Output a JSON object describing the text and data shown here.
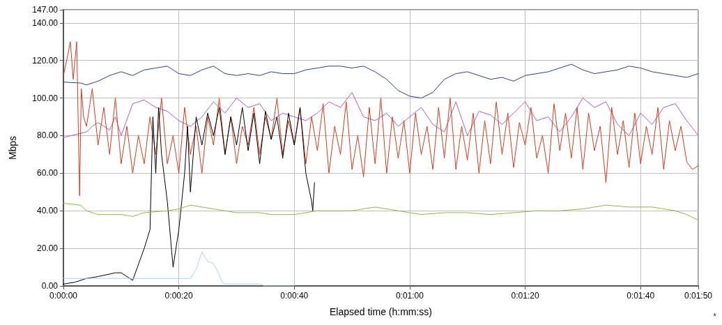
{
  "chart_data": {
    "type": "line",
    "xlabel": "Elapsed time (h:mm:ss)",
    "ylabel": "Mbps",
    "grid": true,
    "marker": "none",
    "line_style": "solid",
    "annotations": [
      "*"
    ],
    "xlim": [
      0,
      110
    ],
    "xticks": [
      {
        "value": 0,
        "label": "0:00:00"
      },
      {
        "value": 20,
        "label": "0:00:20"
      },
      {
        "value": 40,
        "label": "0:00:40"
      },
      {
        "value": 60,
        "label": "0:01:00"
      },
      {
        "value": 80,
        "label": "0:01:20"
      },
      {
        "value": 100,
        "label": "0:01:40"
      },
      {
        "value": 110,
        "label": "0:01:50"
      }
    ],
    "ylim": [
      0,
      147
    ],
    "yticks": [
      {
        "value": 0,
        "label": "0.00"
      },
      {
        "value": 20,
        "label": "20.00"
      },
      {
        "value": 40,
        "label": "40.00"
      },
      {
        "value": 60,
        "label": "60.00"
      },
      {
        "value": 80,
        "label": "80.00"
      },
      {
        "value": 100,
        "label": "100.00"
      },
      {
        "value": 120,
        "label": "120.00"
      },
      {
        "value": 140,
        "label": "140.00"
      },
      {
        "value": 147,
        "label": "147.00"
      }
    ],
    "series": [
      {
        "color": "#2b3f95",
        "x": [
          0,
          3,
          4,
          6,
          8,
          10,
          12,
          14,
          16,
          18,
          20,
          22,
          24,
          26,
          28,
          30,
          32,
          34,
          36,
          38,
          40,
          42,
          44,
          46,
          48,
          50,
          52,
          54,
          56,
          58,
          60,
          62,
          64,
          66,
          68,
          70,
          72,
          74,
          76,
          78,
          80,
          82,
          84,
          86,
          88,
          90,
          92,
          94,
          96,
          98,
          100,
          102,
          104,
          106,
          108,
          110
        ],
        "values": [
          108.5,
          108,
          107,
          109,
          112,
          114,
          112,
          115,
          116,
          117,
          113,
          112,
          115,
          117,
          113,
          112,
          113,
          112,
          114,
          113,
          113,
          115,
          116,
          117,
          117,
          116,
          117,
          114,
          110,
          104,
          101,
          100,
          103,
          110,
          113,
          114,
          112,
          110,
          111,
          109,
          112,
          113,
          114,
          116,
          118,
          115,
          113,
          114,
          115,
          117,
          116,
          114,
          113,
          112,
          111,
          113
        ]
      },
      {
        "color": "#b05fb0",
        "x": [
          0,
          4,
          5,
          6,
          8,
          9,
          10,
          12,
          14,
          16,
          18,
          20,
          22,
          24,
          26,
          28,
          30,
          32,
          34,
          36,
          38,
          40,
          42,
          44,
          46,
          48,
          50,
          52,
          54,
          56,
          58,
          60,
          62,
          64,
          66,
          68,
          70,
          72,
          74,
          76,
          78,
          80,
          82,
          84,
          86,
          88,
          90,
          92,
          94,
          96,
          98,
          100,
          102,
          104,
          106,
          108,
          110
        ],
        "values": [
          79,
          82,
          85,
          87,
          83,
          90,
          80,
          97,
          99,
          95,
          93,
          88,
          85,
          90,
          98,
          92,
          100,
          95,
          97,
          88,
          92,
          90,
          88,
          92,
          98,
          95,
          103,
          90,
          88,
          92,
          85,
          90,
          95,
          86,
          82,
          98,
          80,
          93,
          91,
          86,
          92,
          98,
          88,
          90,
          82,
          90,
          100,
          95,
          98,
          86,
          80,
          92,
          86,
          95,
          97,
          88,
          80
        ]
      },
      {
        "color": "#d93a1f",
        "x": [
          0,
          0.7,
          1.2,
          1.7,
          2.3,
          2.8,
          3.1,
          3.5,
          4,
          5,
          6,
          7,
          8,
          9,
          10,
          11,
          12,
          13,
          14,
          15,
          16,
          17,
          18,
          19,
          20,
          21,
          22,
          23,
          24,
          25,
          26,
          27,
          28,
          29,
          30,
          31,
          32,
          33,
          34,
          35,
          36,
          37,
          38,
          39,
          40,
          41,
          42,
          43,
          44,
          45,
          46,
          47,
          48,
          49,
          50,
          51,
          52,
          53,
          54,
          55,
          56,
          57,
          58,
          59,
          60,
          61,
          62,
          63,
          64,
          65,
          66,
          67,
          68,
          69,
          70,
          71,
          72,
          73,
          74,
          75,
          76,
          77,
          78,
          79,
          80,
          81,
          82,
          83,
          84,
          85,
          86,
          87,
          88,
          89,
          90,
          91,
          92,
          93,
          94,
          95,
          96,
          97,
          98,
          99,
          100,
          101,
          102,
          103,
          104,
          105,
          106,
          107,
          108,
          109,
          110
        ],
        "values": [
          112,
          122,
          130,
          110,
          130,
          48,
          105,
          90,
          85,
          105,
          75,
          95,
          70,
          100,
          65,
          85,
          60,
          80,
          65,
          90,
          70,
          100,
          65,
          80,
          60,
          95,
          70,
          85,
          60,
          90,
          75,
          100,
          70,
          90,
          65,
          85,
          75,
          95,
          70,
          90,
          78,
          100,
          70,
          88,
          75,
          95,
          65,
          90,
          72,
          97,
          60,
          85,
          70,
          98,
          62,
          80,
          58,
          95,
          65,
          100,
          60,
          90,
          68,
          88,
          60,
          92,
          70,
          85,
          62,
          95,
          68,
          100,
          62,
          85,
          67,
          92,
          60,
          88,
          65,
          98,
          70,
          92,
          63,
          87,
          75,
          95,
          68,
          80,
          60,
          97,
          72,
          92,
          68,
          95,
          62,
          92,
          72,
          85,
          55,
          95,
          70,
          88,
          63,
          92,
          65,
          85,
          70,
          95,
          62,
          88,
          72,
          85,
          66,
          62,
          64
        ]
      },
      {
        "color": "#000000",
        "x": [
          0,
          2,
          3,
          4,
          6,
          9,
          10,
          12,
          14,
          15,
          15.5,
          16,
          16.5,
          17,
          18,
          19,
          20,
          21,
          21.5,
          22,
          23,
          24,
          25,
          26,
          27,
          28,
          29,
          30,
          31,
          32,
          33,
          34,
          35,
          36,
          37,
          38,
          39,
          40,
          41,
          42,
          43,
          43.2,
          43.5
        ],
        "values": [
          1,
          2,
          3,
          4,
          5,
          7,
          7,
          3,
          20,
          30,
          90,
          60,
          95,
          70,
          45,
          10,
          30,
          60,
          85,
          50,
          90,
          75,
          92,
          80,
          95,
          70,
          90,
          75,
          95,
          72,
          92,
          65,
          93,
          78,
          90,
          68,
          92,
          75,
          95,
          60,
          45,
          40,
          55
        ]
      },
      {
        "color": "#8ab84a",
        "x": [
          0,
          3,
          4,
          6,
          10,
          12,
          14,
          18,
          20,
          22,
          24,
          26,
          30,
          34,
          36,
          38,
          40,
          44,
          50,
          54,
          58,
          62,
          66,
          70,
          74,
          78,
          82,
          86,
          90,
          94,
          98,
          100,
          102,
          106,
          108,
          110
        ],
        "values": [
          44,
          43,
          40,
          38,
          38,
          37,
          39,
          40,
          41,
          43,
          42,
          41,
          39,
          39,
          38,
          38,
          38,
          40,
          40,
          42,
          40,
          38,
          39,
          39,
          38,
          39,
          40,
          40,
          41,
          43,
          42,
          42,
          42,
          40,
          38,
          35
        ]
      },
      {
        "color": "#a8d4e0",
        "x": [
          0,
          22,
          23,
          24,
          25,
          26,
          27,
          27.5,
          28,
          34,
          35,
          40
        ],
        "values": [
          4,
          4,
          9,
          18,
          13,
          12,
          6,
          2,
          1,
          1,
          0,
          0
        ]
      }
    ]
  }
}
